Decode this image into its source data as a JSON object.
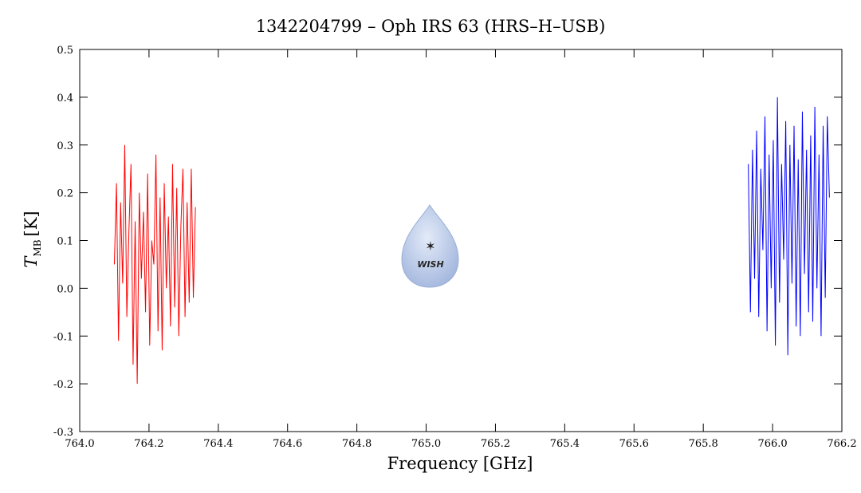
{
  "chart_data": {
    "type": "line",
    "title": "1342204799 – Oph IRS 63 (HRS–H–USB)",
    "x_label": "Frequency [GHz]",
    "y_label": {
      "symbol": "T",
      "subscript": "MB",
      "unit": "[K]"
    },
    "logo_text": "WISH",
    "xlim": [
      764.0,
      766.2
    ],
    "xticks": [
      {
        "value": 764.0,
        "label": "764.0"
      },
      764.2,
      764.4,
      764.6,
      764.8,
      {
        "value": 765.0,
        "label": "765.0"
      },
      765.2,
      765.4,
      765.6,
      765.8,
      {
        "value": 766.0,
        "label": "766.0"
      },
      766.2
    ],
    "ylim": [
      -0.3,
      0.5
    ],
    "yticks": [
      -0.3,
      -0.2,
      -0.1,
      {
        "value": 0.0,
        "label": "0.0"
      },
      0.1,
      0.2,
      0.3,
      0.4,
      0.5
    ],
    "series": [
      {
        "color": "#ff0000",
        "x": [
          764.1,
          764.106,
          764.112,
          764.118,
          764.124,
          764.13,
          764.136,
          764.142,
          764.148,
          764.154,
          764.16,
          764.166,
          764.172,
          764.178,
          764.184,
          764.19,
          764.196,
          764.202,
          764.208,
          764.214,
          764.22,
          764.226,
          764.232,
          764.238,
          764.244,
          764.25,
          764.256,
          764.262,
          764.268,
          764.274,
          764.28,
          764.286,
          764.292,
          764.298,
          764.304,
          764.31,
          764.316,
          764.322,
          764.328,
          764.334
        ],
        "values": [
          0.05,
          0.22,
          -0.11,
          0.18,
          0.01,
          0.3,
          -0.06,
          0.12,
          0.26,
          -0.16,
          0.14,
          -0.2,
          0.2,
          0.02,
          0.16,
          -0.05,
          0.24,
          -0.12,
          0.1,
          0.05,
          0.28,
          -0.09,
          0.19,
          -0.13,
          0.22,
          0.0,
          0.15,
          -0.08,
          0.26,
          -0.04,
          0.21,
          -0.1,
          0.13,
          0.25,
          -0.06,
          0.18,
          -0.03,
          0.25,
          -0.02,
          0.17
        ]
      },
      {
        "color": "#0000ff",
        "x": [
          765.93,
          765.936,
          765.942,
          765.948,
          765.954,
          765.96,
          765.966,
          765.972,
          765.978,
          765.984,
          765.99,
          765.996,
          766.002,
          766.008,
          766.014,
          766.02,
          766.026,
          766.032,
          766.038,
          766.044,
          766.05,
          766.056,
          766.062,
          766.068,
          766.074,
          766.08,
          766.086,
          766.092,
          766.098,
          766.104,
          766.11,
          766.116,
          766.122,
          766.128,
          766.134,
          766.14,
          766.146,
          766.152,
          766.158,
          766.164
        ],
        "values": [
          0.26,
          -0.05,
          0.29,
          0.02,
          0.33,
          -0.06,
          0.25,
          0.08,
          0.36,
          -0.09,
          0.28,
          0.0,
          0.31,
          -0.12,
          0.4,
          -0.03,
          0.26,
          0.06,
          0.35,
          -0.14,
          0.3,
          0.01,
          0.34,
          -0.08,
          0.27,
          -0.1,
          0.37,
          0.03,
          0.29,
          -0.05,
          0.32,
          -0.07,
          0.38,
          0.0,
          0.28,
          -0.1,
          0.34,
          -0.02,
          0.36,
          0.19
        ]
      }
    ]
  }
}
